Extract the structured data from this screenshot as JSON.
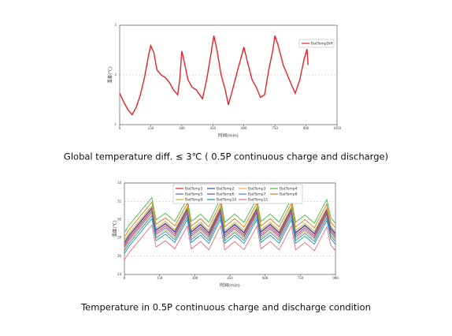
{
  "chart_data": [
    {
      "type": "line",
      "title": "Global temperature diff. ≤ 3℃ ( 0.5P continuous charge and discharge)",
      "xlabel": "时间(min)",
      "ylabel": "温差(℃)",
      "x": [
        0,
        20,
        40,
        60,
        80,
        100,
        120,
        140,
        150,
        165,
        180,
        200,
        220,
        240,
        260,
        280,
        290,
        300,
        310,
        330,
        350,
        370,
        400,
        420,
        440,
        455,
        470,
        490,
        510,
        525,
        545,
        570,
        590,
        600,
        615,
        640,
        660,
        680,
        700,
        720,
        740,
        750,
        765,
        790,
        810,
        830,
        848,
        870,
        890,
        905,
        910
      ],
      "series": [
        {
          "name": "BatTempDiff",
          "color": "#e8202a",
          "values": [
            1.63,
            1.45,
            1.3,
            1.2,
            1.35,
            1.6,
            1.95,
            2.4,
            2.59,
            2.45,
            2.1,
            2.0,
            1.95,
            1.85,
            1.7,
            1.6,
            1.9,
            2.48,
            2.3,
            1.9,
            1.75,
            1.7,
            1.52,
            1.9,
            2.4,
            2.79,
            2.5,
            2.0,
            1.7,
            1.4,
            1.7,
            2.1,
            2.4,
            2.56,
            2.3,
            1.9,
            1.75,
            1.55,
            1.6,
            2.1,
            2.5,
            2.79,
            2.6,
            2.2,
            2.0,
            1.8,
            1.63,
            1.9,
            2.3,
            2.52,
            2.2
          ]
        }
      ],
      "xlim": [
        0,
        1050
      ],
      "xticks": [
        0,
        150,
        300,
        450,
        600,
        750,
        900,
        1050
      ],
      "ylim": [
        1,
        3
      ],
      "yticks": [
        1,
        2,
        3
      ],
      "grid": true,
      "legend": "upper right"
    },
    {
      "type": "line",
      "title": "Temperature in 0.5P continuous charge and discharge condition",
      "xlabel": "时间(min)",
      "ylabel": "温度(℃)",
      "x": [
        0,
        20,
        117,
        135,
        175,
        215,
        268,
        285,
        325,
        360,
        410,
        428,
        470,
        510,
        565,
        582,
        622,
        660,
        712,
        730,
        770,
        810,
        863,
        880,
        900
      ],
      "series": [
        {
          "name": "BatTemp1",
          "color": "#e02828",
          "values": [
            27.2,
            28.0,
            31.0,
            28.6,
            29.3,
            28.4,
            30.9,
            28.4,
            29.2,
            28.3,
            30.9,
            28.3,
            29.2,
            28.3,
            30.9,
            28.4,
            29.2,
            28.3,
            30.9,
            28.3,
            29.1,
            28.2,
            30.8,
            28.8,
            28.2
          ]
        },
        {
          "name": "BatTemp2",
          "color": "#2f4fa8",
          "values": [
            27.5,
            28.3,
            31.3,
            28.9,
            29.6,
            28.7,
            31.2,
            28.7,
            29.5,
            28.6,
            31.2,
            28.6,
            29.5,
            28.6,
            31.2,
            28.7,
            29.5,
            28.6,
            31.2,
            28.6,
            29.4,
            28.5,
            31.1,
            29.1,
            28.5
          ]
        },
        {
          "name": "BatTemp3",
          "color": "#f0a838",
          "values": [
            26.8,
            27.6,
            30.6,
            28.2,
            28.9,
            28.0,
            30.5,
            28.0,
            28.8,
            27.9,
            30.5,
            27.9,
            28.8,
            27.9,
            30.5,
            28.0,
            28.8,
            27.9,
            30.5,
            27.9,
            28.7,
            27.8,
            30.4,
            28.4,
            27.8
          ]
        },
        {
          "name": "BatTemp4",
          "color": "#3cbc3c",
          "values": [
            28.6,
            29.4,
            32.4,
            30.0,
            30.7,
            29.8,
            32.3,
            29.8,
            30.6,
            29.7,
            32.3,
            29.7,
            30.6,
            29.7,
            32.3,
            29.8,
            30.6,
            29.7,
            32.3,
            29.7,
            30.5,
            29.6,
            32.2,
            30.2,
            29.6
          ]
        },
        {
          "name": "BatTemp5",
          "color": "#4a68c8",
          "values": [
            27.0,
            27.8,
            30.8,
            28.4,
            29.1,
            28.2,
            30.7,
            28.2,
            29.0,
            28.1,
            30.7,
            28.1,
            29.0,
            28.1,
            30.7,
            28.2,
            29.0,
            28.1,
            30.7,
            28.1,
            28.9,
            28.0,
            30.6,
            28.6,
            28.0
          ]
        },
        {
          "name": "BatTemp6",
          "color": "#7a4a9a",
          "values": [
            27.4,
            28.2,
            31.2,
            28.8,
            29.5,
            28.6,
            31.1,
            28.6,
            29.4,
            28.5,
            31.1,
            28.5,
            29.4,
            28.5,
            31.1,
            28.6,
            29.4,
            28.5,
            31.1,
            28.5,
            29.3,
            28.4,
            31.0,
            29.0,
            28.4
          ]
        },
        {
          "name": "BatTemp7",
          "color": "#3a8ad8",
          "values": [
            26.6,
            27.4,
            30.4,
            28.0,
            28.7,
            27.8,
            30.3,
            27.8,
            28.6,
            27.7,
            30.3,
            27.7,
            28.6,
            27.7,
            30.3,
            27.8,
            28.6,
            27.7,
            30.3,
            27.7,
            28.5,
            27.6,
            30.2,
            28.2,
            27.6
          ]
        },
        {
          "name": "BatTemp8",
          "color": "#e07a20",
          "values": [
            28.1,
            28.9,
            31.9,
            29.5,
            30.2,
            29.3,
            31.8,
            29.3,
            30.1,
            29.2,
            31.8,
            29.2,
            30.1,
            29.2,
            31.8,
            29.3,
            30.1,
            29.2,
            31.8,
            29.2,
            30.0,
            29.1,
            31.7,
            29.7,
            29.1
          ]
        },
        {
          "name": "BatTemp9",
          "color": "#c8b020",
          "values": [
            27.7,
            28.5,
            31.5,
            29.1,
            29.8,
            28.9,
            31.4,
            28.9,
            29.7,
            28.8,
            31.4,
            28.8,
            29.7,
            28.8,
            31.4,
            28.9,
            29.7,
            28.8,
            31.4,
            28.8,
            29.6,
            28.7,
            31.3,
            29.3,
            28.7
          ]
        },
        {
          "name": "BatTemp10",
          "color": "#1f9a9a",
          "values": [
            26.3,
            27.1,
            30.1,
            27.7,
            28.4,
            27.5,
            30.0,
            27.5,
            28.3,
            27.4,
            30.0,
            27.4,
            28.3,
            27.4,
            30.0,
            27.5,
            28.3,
            27.4,
            30.0,
            27.4,
            28.2,
            27.3,
            29.9,
            27.9,
            27.3
          ]
        },
        {
          "name": "BatTemp11",
          "color": "#e86a7a",
          "values": [
            25.6,
            26.4,
            29.4,
            27.0,
            27.7,
            26.8,
            29.3,
            26.8,
            27.6,
            26.7,
            29.3,
            26.7,
            27.6,
            26.7,
            29.3,
            26.8,
            27.6,
            26.7,
            29.3,
            26.7,
            27.5,
            26.6,
            29.2,
            27.2,
            26.6
          ]
        }
      ],
      "xlim": [
        0,
        900
      ],
      "xticks": [
        0,
        150,
        300,
        450,
        600,
        750,
        900
      ],
      "ylim": [
        24,
        34
      ],
      "yticks": [
        24,
        26,
        28,
        30,
        32,
        34
      ],
      "grid": true,
      "legend": "upper center"
    }
  ]
}
